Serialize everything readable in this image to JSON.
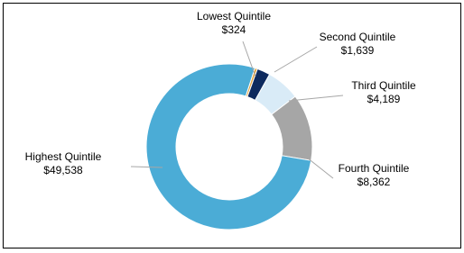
{
  "chart_data": {
    "type": "donut",
    "categories": [
      "Lowest Quintile",
      "Second Quintile",
      "Third Quintile",
      "Fourth Quintile",
      "Highest Quintile"
    ],
    "values": [
      324,
      1639,
      4189,
      8362,
      49538
    ],
    "value_labels": [
      "$324",
      "$1,639",
      "$4,189",
      "$8,362",
      "$49,538"
    ],
    "colors": [
      "#e3a33a",
      "#0d2a5e",
      "#d9ebf7",
      "#a6a6a6",
      "#4bacd6"
    ]
  }
}
